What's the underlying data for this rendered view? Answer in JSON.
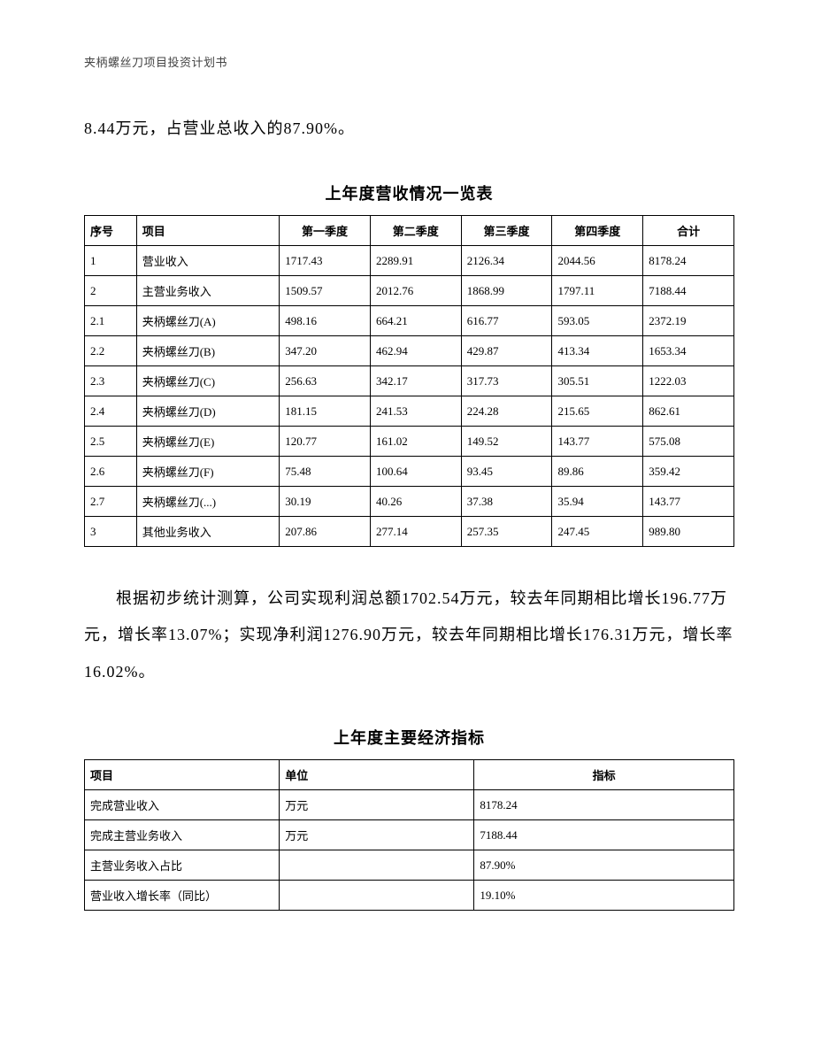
{
  "header": "夹柄螺丝刀项目投资计划书",
  "intro": "8.44万元，占营业总收入的87.90%。",
  "table1_title": "上年度营收情况一览表",
  "table1": {
    "columns": [
      "序号",
      "项目",
      "第一季度",
      "第二季度",
      "第三季度",
      "第四季度",
      "合计"
    ],
    "rows": [
      [
        "1",
        "营业收入",
        "1717.43",
        "2289.91",
        "2126.34",
        "2044.56",
        "8178.24"
      ],
      [
        "2",
        "主营业务收入",
        "1509.57",
        "2012.76",
        "1868.99",
        "1797.11",
        "7188.44"
      ],
      [
        "2.1",
        "夹柄螺丝刀(A)",
        "498.16",
        "664.21",
        "616.77",
        "593.05",
        "2372.19"
      ],
      [
        "2.2",
        "夹柄螺丝刀(B)",
        "347.20",
        "462.94",
        "429.87",
        "413.34",
        "1653.34"
      ],
      [
        "2.3",
        "夹柄螺丝刀(C)",
        "256.63",
        "342.17",
        "317.73",
        "305.51",
        "1222.03"
      ],
      [
        "2.4",
        "夹柄螺丝刀(D)",
        "181.15",
        "241.53",
        "224.28",
        "215.65",
        "862.61"
      ],
      [
        "2.5",
        "夹柄螺丝刀(E)",
        "120.77",
        "161.02",
        "149.52",
        "143.77",
        "575.08"
      ],
      [
        "2.6",
        "夹柄螺丝刀(F)",
        "75.48",
        "100.64",
        "93.45",
        "89.86",
        "359.42"
      ],
      [
        "2.7",
        "夹柄螺丝刀(...)",
        "30.19",
        "40.26",
        "37.38",
        "35.94",
        "143.77"
      ],
      [
        "3",
        "其他业务收入",
        "207.86",
        "277.14",
        "257.35",
        "247.45",
        "989.80"
      ]
    ]
  },
  "para": "根据初步统计测算，公司实现利润总额1702.54万元，较去年同期相比增长196.77万元，增长率13.07%；实现净利润1276.90万元，较去年同期相比增长176.31万元，增长率16.02%。",
  "table2_title": "上年度主要经济指标",
  "table2": {
    "columns": [
      "项目",
      "单位",
      "指标"
    ],
    "rows": [
      [
        "完成营业收入",
        "万元",
        "8178.24"
      ],
      [
        "完成主营业务收入",
        "万元",
        "7188.44"
      ],
      [
        "主营业务收入占比",
        "",
        "87.90%"
      ],
      [
        "营业收入增长率（同比）",
        "",
        "19.10%"
      ]
    ]
  }
}
